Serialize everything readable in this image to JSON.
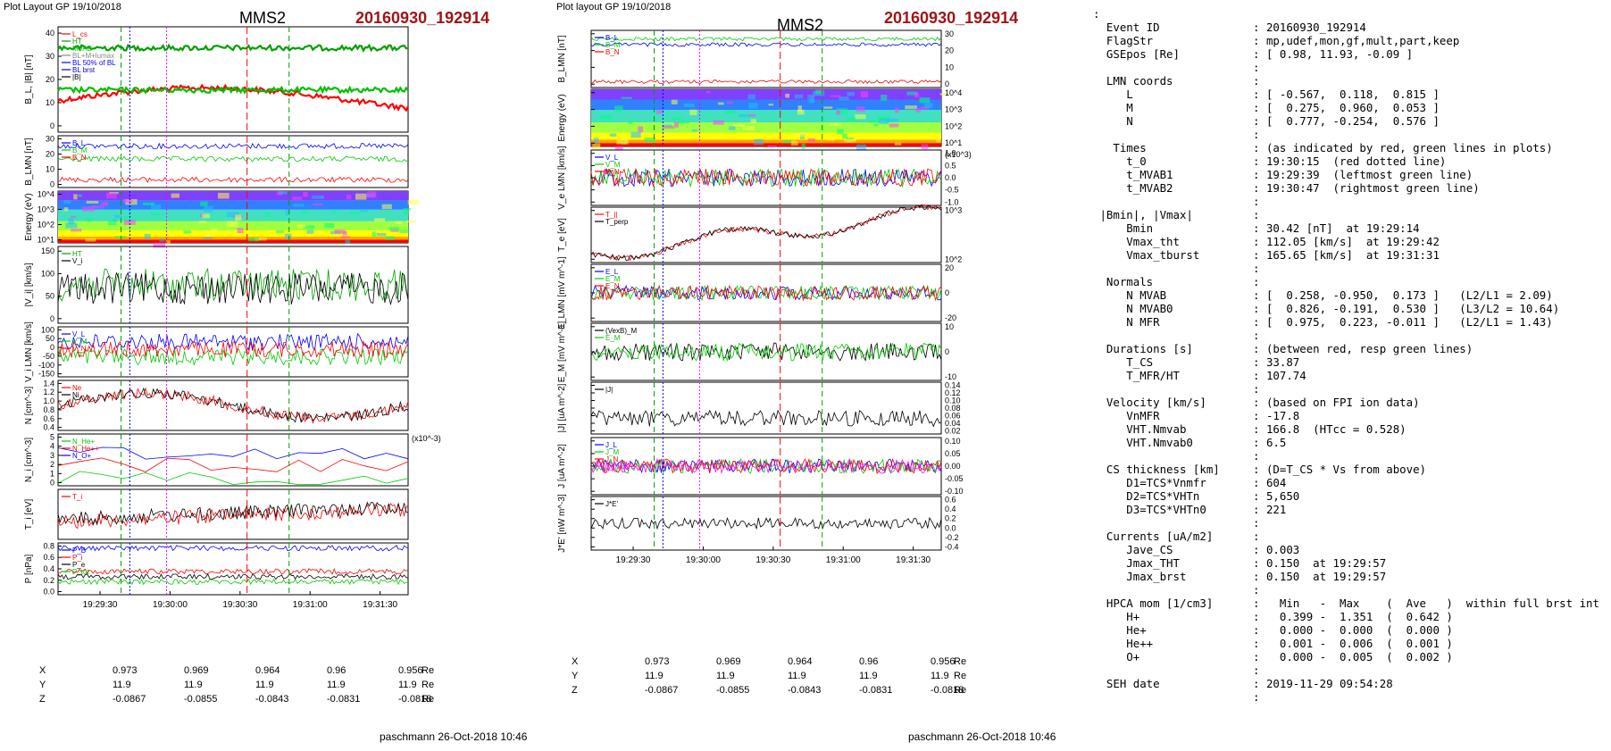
{
  "left": {
    "plot_layout": "Plot Layout GP 19/10/2018",
    "spacecraft": "MMS2",
    "event": "20160930_192914",
    "footer": "paschmann 26-Oct-2018 10:46",
    "time_ticks": [
      "19:29:30",
      "19:30:00",
      "19:30:30",
      "19:31:00",
      "19:31:30"
    ],
    "position": {
      "rows": [
        {
          "label": "X",
          "values": [
            "0.973",
            "0.969",
            "0.964",
            "0.96",
            "0.956"
          ],
          "unit": "Re"
        },
        {
          "label": "Y",
          "values": [
            "11.9",
            "11.9",
            "11.9",
            "11.9",
            "11.9"
          ],
          "unit": "Re"
        },
        {
          "label": "Z",
          "values": [
            "-0.0867",
            "-0.0855",
            "-0.0843",
            "-0.0831",
            "-0.0818"
          ],
          "unit": "Re"
        }
      ]
    }
  },
  "right": {
    "plot_layout": "Plot layout GP 19/10/2018",
    "spacecraft": "MMS2",
    "event": "20160930_192914",
    "footer": "paschmann 26-Oct-2018 10:46",
    "time_ticks": [
      "19:29:30",
      "19:30:00",
      "19:30:30",
      "19:31:00",
      "19:31:30"
    ],
    "position": {
      "rows": [
        {
          "label": "X",
          "values": [
            "0.973",
            "0.969",
            "0.964",
            "0.96",
            "0.956"
          ],
          "unit": "Re"
        },
        {
          "label": "Y",
          "values": [
            "11.9",
            "11.9",
            "11.9",
            "11.9",
            "11.9"
          ],
          "unit": "Re"
        },
        {
          "label": "Z",
          "values": [
            "-0.0867",
            "-0.0855",
            "-0.0843",
            "-0.0831",
            "-0.0818"
          ],
          "unit": "Re"
        }
      ]
    }
  },
  "chart_data": [
    {
      "type": "line",
      "title": "MMS2",
      "subtitle": "20160930_192914",
      "x_ticks": [
        "19:29:30",
        "19:30:00",
        "19:30:30",
        "19:31:00",
        "19:31:30"
      ],
      "panels": [
        {
          "ylabel": "B_L, |B| [nT]",
          "yticks": [
            "0",
            "10",
            "20",
            "30",
            "40"
          ],
          "legend": [
            "L_cs",
            "HT",
            "MVAB",
            "BL+M+lumax",
            "BL 50% of BL",
            "BL brst",
            "|B|"
          ],
          "series_colors": [
            "#ff0000",
            "#00a000",
            "#00c000",
            "#888888",
            "#0000ff",
            "#0000cc",
            "#000000"
          ]
        },
        {
          "ylabel": "B_LMN [nT]",
          "yticks": [
            "0",
            "10",
            "20",
            "30"
          ],
          "legend": [
            "B_L",
            "B_M",
            "B_N"
          ],
          "series_colors": [
            "#0000ff",
            "#00cc00",
            "#ff0000"
          ]
        },
        {
          "ylabel": "Energy (eV)",
          "yticks": [
            "10^1",
            "10^2",
            "10^3",
            "10^4"
          ],
          "type": "heatmap"
        },
        {
          "ylabel": "|V_i| [km/s]",
          "yticks": [
            "0",
            "50",
            "100",
            "150"
          ],
          "legend": [
            "HT",
            "V_i"
          ],
          "series_colors": [
            "#00a000",
            "#000000"
          ]
        },
        {
          "ylabel": "V_i LMN [km/s]",
          "yticks": [
            "-150",
            "-100",
            "-50",
            "0",
            "50",
            "100"
          ],
          "legend": [
            "V_L",
            "V_M",
            "V_N"
          ],
          "series_colors": [
            "#0000ff",
            "#00cc00",
            "#ff0000"
          ]
        },
        {
          "ylabel": "N [cm^-3]",
          "yticks": [
            "0.4",
            "0.6",
            "0.8",
            "1.0",
            "1.2",
            "1.4"
          ],
          "legend": [
            "Ne",
            "Ni"
          ],
          "series_colors": [
            "#ff0000",
            "#000000"
          ]
        },
        {
          "ylabel": "N_i [cm^-3]",
          "yticks": [
            "0",
            "1",
            "2",
            "3",
            "4",
            "5"
          ],
          "multiplier": "(x10^-3)",
          "legend": [
            "N_He+",
            "N_He++",
            "N_O+"
          ],
          "series_colors": [
            "#00cc00",
            "#ff0000",
            "#0000ff"
          ]
        },
        {
          "ylabel": "T_i [eV]",
          "yticks": [],
          "legend": [
            "T_i"
          ],
          "series_colors": [
            "#ff0000",
            "#000000"
          ]
        },
        {
          "ylabel": "P [nPa]",
          "yticks": [
            "0.0",
            "0.2",
            "0.4",
            "0.6",
            "0.8"
          ],
          "legend": [
            "P_B",
            "P_i",
            "P_e",
            "P_tot"
          ],
          "series_colors": [
            "#0000ff",
            "#ff0000",
            "#000000",
            "#00cc00"
          ]
        }
      ],
      "markers": {
        "red_dotted": "19:30:15",
        "green_dashed": [
          "19:29:39",
          "19:30:47"
        ]
      }
    },
    {
      "type": "line",
      "title": "MMS2",
      "subtitle": "20160930_192914",
      "x_ticks": [
        "19:29:30",
        "19:30:00",
        "19:30:30",
        "19:31:00",
        "19:31:30"
      ],
      "panels": [
        {
          "ylabel": "B_LMN [nT]",
          "yticks": [
            "0",
            "10",
            "20",
            "30"
          ],
          "legend": [
            "B_L",
            "B_M",
            "B_N"
          ],
          "series_colors": [
            "#0000ff",
            "#00cc00",
            "#ff0000"
          ]
        },
        {
          "ylabel": "Energy (eV)",
          "yticks": [
            "10^1",
            "10^2",
            "10^3",
            "10^4"
          ],
          "type": "heatmap"
        },
        {
          "ylabel": "V_e LMN [km/s]",
          "yticks": [
            "-1.0",
            "-0.5",
            "0.0",
            "0.5",
            "1.0"
          ],
          "multiplier": "(x10^3)",
          "legend": [
            "V_L",
            "V_M",
            "V_N"
          ],
          "series_colors": [
            "#0000ff",
            "#00cc00",
            "#ff0000"
          ]
        },
        {
          "ylabel": "T_e [eV]",
          "yticks": [
            "10^2",
            "10^3"
          ],
          "legend": [
            "T_||",
            "T_perp"
          ],
          "series_colors": [
            "#ff0000",
            "#000000"
          ]
        },
        {
          "ylabel": "E_LMN [mV m^-1]",
          "yticks": [
            "-20",
            "0",
            "20"
          ],
          "legend": [
            "E_L",
            "E_M",
            "E_N"
          ],
          "series_colors": [
            "#0000ff",
            "#00cc00",
            "#ff0000"
          ]
        },
        {
          "ylabel": "E_M [mV m^-1]",
          "yticks": [
            "-10",
            "0",
            "10"
          ],
          "legend": [
            "(VexB)_M",
            "E_M"
          ],
          "series_colors": [
            "#000000",
            "#00cc00"
          ]
        },
        {
          "ylabel": "|J| [uA m^-2]",
          "yticks": [
            "0.02",
            "0.04",
            "0.06",
            "0.08",
            "0.10",
            "0.12",
            "0.14"
          ],
          "legend": [
            "|J|"
          ],
          "series_colors": [
            "#000000"
          ]
        },
        {
          "ylabel": "J [uA m^-2]",
          "yticks": [
            "-0.10",
            "-0.05",
            "0.00",
            "0.05",
            "0.10"
          ],
          "legend": [
            "J_L",
            "J_M",
            "J_N",
            "J_max"
          ],
          "series_colors": [
            "#0000ff",
            "#00cc00",
            "#ff0000",
            "#ff00ff"
          ]
        },
        {
          "ylabel": "J*E' [nW m^-3]",
          "yticks": [
            "-0.4",
            "-0.2",
            "0.0",
            "0.2",
            "0.4",
            "0.6"
          ],
          "legend": [
            "J*E'"
          ],
          "series_colors": [
            "#000000"
          ]
        }
      ],
      "markers": {
        "red_dotted": "19:30:15",
        "green_dashed": [
          "19:29:39",
          "19:30:47"
        ]
      }
    }
  ],
  "info": {
    "lines": [
      ":",
      "  Event ID              : 20160930_192914",
      "  FlagStr               : mp,udef,mon,gf,mult,part,keep",
      "  GSEpos [Re]           : [ 0.98, 11.93, -0.09 ]",
      "                        :",
      "  LMN coords            :",
      "     L                  : [ -0.567,  0.118,  0.815 ]",
      "     M                  : [  0.275,  0.960,  0.053 ]",
      "     N                  : [  0.777, -0.254,  0.576 ]",
      "                        :",
      "   Times                : (as indicated by red, green lines in plots)",
      "     t_0                : 19:30:15  (red dotted line)",
      "     t_MVAB1            : 19:29:39  (leftmost green line)",
      "     t_MVAB2            : 19:30:47  (rightmost green line)",
      "                        :",
      " |Bmin|, |Vmax|         :",
      "     Bmin               : 30.42 [nT]  at 19:29:14",
      "     Vmax_tht           : 112.05 [km/s]  at 19:29:42",
      "     Vmax_tburst        : 165.65 [km/s]  at 19:31:31",
      "                        :",
      "  Normals               :",
      "     N MVAB             : [  0.258, -0.950,  0.173 ]   (L2/L1 = 2.09)",
      "     N MVAB0            : [  0.826, -0.191,  0.530 ]   (L3/L2 = 10.64)",
      "     N MFR              : [  0.975,  0.223, -0.011 ]   (L2/L1 = 1.43)",
      "                        :",
      "  Durations [s]         : (between red, resp green lines)",
      "     T_CS               : 33.87",
      "     T_MFR/HT           : 107.74",
      "                        :",
      "  Velocity [km/s]       : (based on FPI ion data)",
      "     VnMFR              : -17.8",
      "     VHT.Nmvab          : 166.8  (HTcc = 0.528)",
      "     VHT.Nmvab0         : 6.5",
      "                        :",
      "  CS thickness [km]     : (D=T_CS * Vs from above)",
      "     D1=TCS*Vnmfr       : 604",
      "     D2=TCS*VHTn        : 5,650",
      "     D3=TCS*VHTn0       : 221",
      "                        :",
      "  Currents [uA/m2]      :",
      "     Jave_CS            : 0.003",
      "     Jmax_THT           : 0.150  at 19:29:57",
      "     Jmax_brst          : 0.150  at 19:29:57",
      "                        :",
      "  HPCA mom [1/cm3]      :   Min   -  Max    (  Ave   )  within full brst int",
      "     H+                 :   0.399 -  1.351  (  0.642 )",
      "     He+                :   0.000 -  0.000  (  0.000 )",
      "     He++               :   0.001 -  0.006  (  0.001 )",
      "     O+                 :   0.000 -  0.005  (  0.002 )",
      "                        :",
      "  SEH date              : 2019-11-29 09:54:28",
      "                        :"
    ]
  }
}
